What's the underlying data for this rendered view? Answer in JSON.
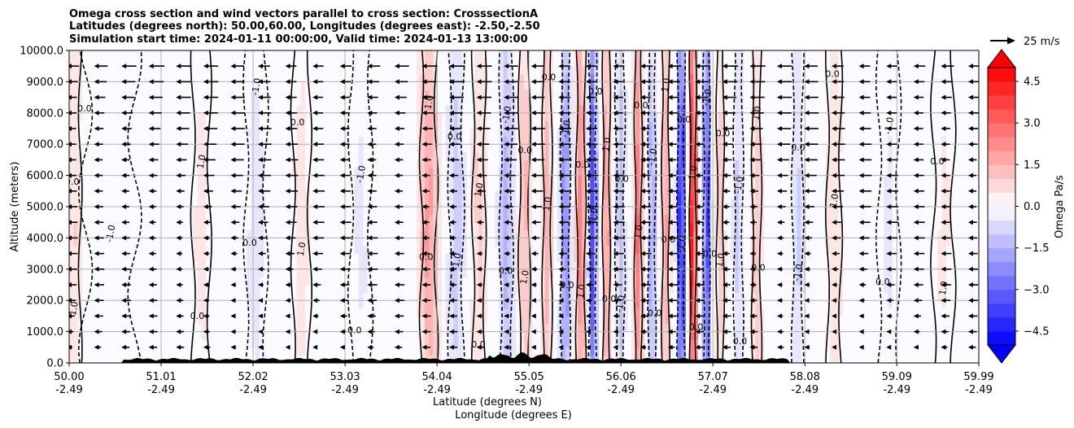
{
  "chart_data": {
    "type": "heatmap",
    "title_lines": [
      "Omega cross section and wind vectors parallel to cross section: CrosssectionA",
      "Latitudes (degrees north): 50.00,60.00, Longitudes (degrees east): -2.50,-2.50",
      "Simulation start time: 2024-01-11 00:00:00, Valid time: 2024-01-13 13:00:00"
    ],
    "xlabel_line1": "Latitude (degrees N)",
    "xlabel_line2": "Longitude (degrees E)",
    "ylabel": "Altitude (meters)",
    "xlim": [
      50.0,
      59.99
    ],
    "ylim": [
      0,
      10000
    ],
    "x_ticks": [
      {
        "lat": "50.00",
        "lon": "-2.49"
      },
      {
        "lat": "51.01",
        "lon": "-2.49"
      },
      {
        "lat": "52.02",
        "lon": "-2.49"
      },
      {
        "lat": "53.03",
        "lon": "-2.49"
      },
      {
        "lat": "54.04",
        "lon": "-2.49"
      },
      {
        "lat": "55.05",
        "lon": "-2.49"
      },
      {
        "lat": "56.06",
        "lon": "-2.49"
      },
      {
        "lat": "57.07",
        "lon": "-2.49"
      },
      {
        "lat": "58.08",
        "lon": "-2.49"
      },
      {
        "lat": "59.09",
        "lon": "-2.49"
      },
      {
        "lat": "59.99",
        "lon": "-2.49"
      }
    ],
    "y_ticks": [
      "0.0",
      "1000.0",
      "2000.0",
      "3000.0",
      "4000.0",
      "5000.0",
      "6000.0",
      "7000.0",
      "8000.0",
      "9000.0",
      "10000.0"
    ],
    "grid": true,
    "colorbar": {
      "label": "Omega Pa/s",
      "range": [
        -5.0,
        5.0
      ],
      "ticks": [
        "4.5",
        "3.0",
        "1.5",
        "0.0",
        "−1.5",
        "−3.0",
        "−4.5"
      ],
      "tick_values": [
        4.5,
        3.0,
        1.5,
        0.0,
        -1.5,
        -3.0,
        -4.5
      ],
      "extend": "both"
    },
    "vector_key": {
      "label": "25 m/s",
      "speed_ms": 25
    },
    "contour_labels": [
      "0.0",
      "1.0",
      "-1.0",
      "2.0",
      "-2.0",
      "3.0",
      "-3.0",
      "4.0",
      "-4.0"
    ],
    "omega_features": [
      {
        "lat": 50.05,
        "value": 0.8,
        "width": 0.08
      },
      {
        "lat": 50.45,
        "value": -0.2,
        "width": 0.3
      },
      {
        "lat": 51.45,
        "value": 0.35,
        "width": 0.1
      },
      {
        "lat": 52.05,
        "value": -0.4,
        "width": 0.12
      },
      {
        "lat": 52.55,
        "value": 0.4,
        "width": 0.1
      },
      {
        "lat": 53.2,
        "value": -0.3,
        "width": 0.12
      },
      {
        "lat": 53.95,
        "value": 1.9,
        "width": 0.09
      },
      {
        "lat": 54.25,
        "value": -1.1,
        "width": 0.08
      },
      {
        "lat": 54.5,
        "value": 0.9,
        "width": 0.07
      },
      {
        "lat": 54.8,
        "value": -1.6,
        "width": 0.07
      },
      {
        "lat": 55.0,
        "value": 1.4,
        "width": 0.06
      },
      {
        "lat": 55.25,
        "value": 1.6,
        "width": 0.05
      },
      {
        "lat": 55.45,
        "value": -2.5,
        "width": 0.05
      },
      {
        "lat": 55.62,
        "value": 2.6,
        "width": 0.05
      },
      {
        "lat": 55.75,
        "value": -3.8,
        "width": 0.04
      },
      {
        "lat": 55.9,
        "value": 2.3,
        "width": 0.04
      },
      {
        "lat": 56.05,
        "value": -1.2,
        "width": 0.05
      },
      {
        "lat": 56.25,
        "value": 2.8,
        "width": 0.04
      },
      {
        "lat": 56.4,
        "value": -1.8,
        "width": 0.04
      },
      {
        "lat": 56.55,
        "value": 1.9,
        "width": 0.04
      },
      {
        "lat": 56.72,
        "value": -4.8,
        "width": 0.04
      },
      {
        "lat": 56.85,
        "value": 5.2,
        "width": 0.035
      },
      {
        "lat": 57.0,
        "value": -4.2,
        "width": 0.035
      },
      {
        "lat": 57.15,
        "value": 1.0,
        "width": 0.04
      },
      {
        "lat": 57.35,
        "value": -1.0,
        "width": 0.05
      },
      {
        "lat": 57.55,
        "value": 1.2,
        "width": 0.05
      },
      {
        "lat": 58.0,
        "value": -0.9,
        "width": 0.06
      },
      {
        "lat": 58.4,
        "value": 0.6,
        "width": 0.08
      },
      {
        "lat": 59.0,
        "value": -0.3,
        "width": 0.12
      },
      {
        "lat": 59.6,
        "value": 0.3,
        "width": 0.12
      }
    ]
  }
}
